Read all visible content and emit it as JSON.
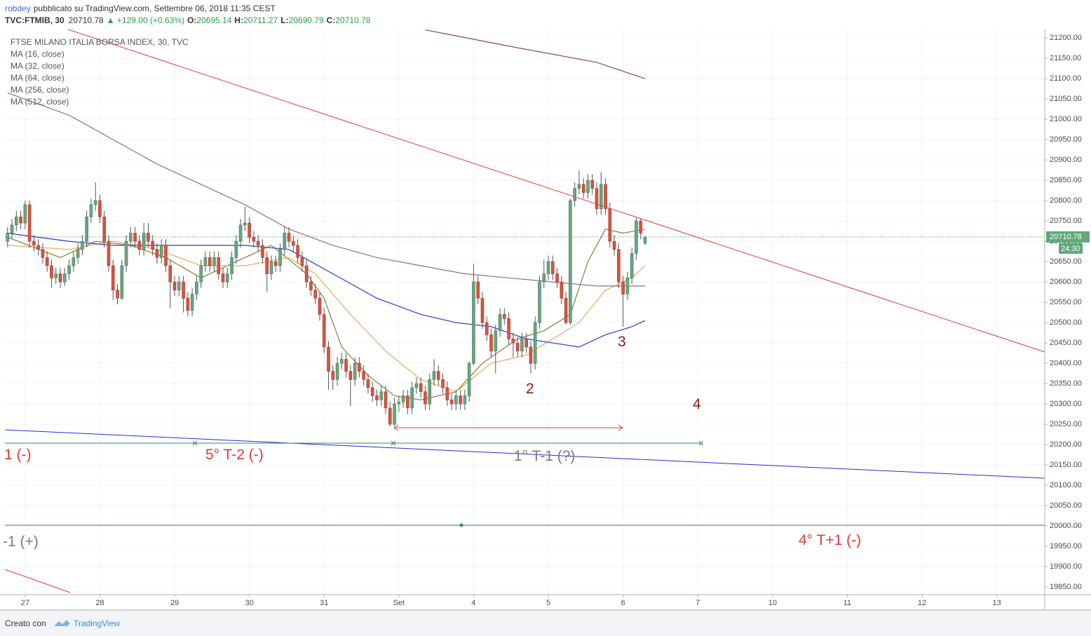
{
  "header": {
    "author": "robdey",
    "published": "pubblicato su TradingView.com, Settembre 06, 2018 11:35 CEST",
    "symbol": "TVC:FTMIB, 30",
    "last": "20710.78",
    "change": "▲ +129.00 (+0.63%)",
    "ohlc": [
      {
        "label": "O:",
        "value": "20695.14"
      },
      {
        "label": "H:",
        "value": "20711.27"
      },
      {
        "label": "L:",
        "value": "20690.79"
      },
      {
        "label": "C:",
        "value": "20710.78"
      }
    ]
  },
  "footer": {
    "made_with": "Creato con",
    "brand": "TradingView"
  },
  "chart_data": {
    "type": "candlestick",
    "title": "FTSE MILANO ITALIA BORSA INDEX, 30, TVC",
    "up_color": "#6ba583",
    "down_color": "#d75442",
    "grid": true,
    "xlim": [
      -4.6,
      231.9
    ],
    "ylim": [
      19831,
      21221
    ],
    "xticks": [
      {
        "value": 0,
        "label": "27"
      },
      {
        "value": 17,
        "label": "28"
      },
      {
        "value": 34,
        "label": "29"
      },
      {
        "value": 51,
        "label": "30"
      },
      {
        "value": 68,
        "label": "31"
      },
      {
        "value": 85,
        "label": "Set"
      },
      {
        "value": 102,
        "label": "4"
      },
      {
        "value": 119,
        "label": "5"
      },
      {
        "value": 136,
        "label": "6"
      },
      {
        "value": 153,
        "label": "7"
      },
      {
        "value": 170,
        "label": "10"
      },
      {
        "value": 187,
        "label": "11"
      },
      {
        "value": 204,
        "label": "12"
      },
      {
        "value": 221,
        "label": "13"
      }
    ],
    "yticks": [
      {
        "value": 19850,
        "label": "19850.00"
      },
      {
        "value": 19900,
        "label": "19900.00"
      },
      {
        "value": 19950,
        "label": "19950.00"
      },
      {
        "value": 20000,
        "label": "20000.00"
      },
      {
        "value": 20050,
        "label": "20050.00"
      },
      {
        "value": 20100,
        "label": "20100.00"
      },
      {
        "value": 20150,
        "label": "20150.00"
      },
      {
        "value": 20200,
        "label": "20200.00"
      },
      {
        "value": 20250,
        "label": "20250.00"
      },
      {
        "value": 20300,
        "label": "20300.00"
      },
      {
        "value": 20350,
        "label": "20350.00"
      },
      {
        "value": 20400,
        "label": "20400.00"
      },
      {
        "value": 20450,
        "label": "20450.00"
      },
      {
        "value": 20500,
        "label": "20500.00"
      },
      {
        "value": 20550,
        "label": "20550.00"
      },
      {
        "value": 20600,
        "label": "20600.00"
      },
      {
        "value": 20650,
        "label": "20650.00"
      },
      {
        "value": 20700,
        "label": "20700.00"
      },
      {
        "value": 20750,
        "label": "20750.00"
      },
      {
        "value": 20800,
        "label": "20800.00"
      },
      {
        "value": 20850,
        "label": "20850.00"
      },
      {
        "value": 20900,
        "label": "20900.00"
      },
      {
        "value": 20950,
        "label": "20950.00"
      },
      {
        "value": 21000,
        "label": "21000.00"
      },
      {
        "value": 21050,
        "label": "21050.00"
      },
      {
        "value": 21100,
        "label": "21100.00"
      },
      {
        "value": 21150,
        "label": "21150.00"
      },
      {
        "value": 21200,
        "label": "21200.00"
      }
    ],
    "last_price": 20710.78,
    "countdown": "24:30",
    "x": [
      -4,
      -3,
      -2,
      -1,
      0,
      1,
      2,
      3,
      4,
      5,
      6,
      7,
      8,
      9,
      10,
      11,
      12,
      13,
      14,
      15,
      16,
      17,
      18,
      19,
      20,
      21,
      22,
      23,
      24,
      25,
      26,
      27,
      28,
      29,
      30,
      31,
      32,
      33,
      34,
      35,
      36,
      37,
      38,
      39,
      40,
      41,
      42,
      43,
      44,
      45,
      46,
      47,
      48,
      49,
      50,
      51,
      52,
      53,
      54,
      55,
      56,
      57,
      58,
      59,
      60,
      61,
      62,
      63,
      64,
      65,
      66,
      67,
      68,
      69,
      70,
      71,
      72,
      73,
      74,
      75,
      76,
      77,
      78,
      79,
      80,
      81,
      82,
      83,
      84,
      85,
      86,
      87,
      88,
      89,
      90,
      91,
      92,
      93,
      94,
      95,
      96,
      97,
      98,
      99,
      100,
      101,
      102,
      103,
      104,
      105,
      106,
      107,
      108,
      109,
      110,
      111,
      112,
      113,
      114,
      115,
      116,
      117,
      118,
      119,
      120,
      121,
      122,
      123,
      124,
      125,
      126,
      127,
      128,
      129,
      130,
      131,
      132,
      133,
      134,
      135,
      136,
      137,
      138,
      139,
      140,
      141
    ],
    "candles": [
      [
        20700,
        20735,
        20685,
        20720
      ],
      [
        20720,
        20755,
        20705,
        20740
      ],
      [
        20740,
        20775,
        20725,
        20760
      ],
      [
        20760,
        20775,
        20730,
        20745
      ],
      [
        20745,
        20800,
        20730,
        20790
      ],
      [
        20790,
        20800,
        20685,
        20700
      ],
      [
        20700,
        20715,
        20675,
        20690
      ],
      [
        20690,
        20705,
        20665,
        20680
      ],
      [
        20680,
        20695,
        20645,
        20660
      ],
      [
        20660,
        20675,
        20625,
        20640
      ],
      [
        20640,
        20655,
        20585,
        20610
      ],
      [
        20610,
        20635,
        20595,
        20620
      ],
      [
        20620,
        20635,
        20585,
        20600
      ],
      [
        20600,
        20635,
        20590,
        20620
      ],
      [
        20620,
        20655,
        20605,
        20640
      ],
      [
        20640,
        20675,
        20625,
        20660
      ],
      [
        20660,
        20695,
        20645,
        20680
      ],
      [
        20680,
        20715,
        20665,
        20700
      ],
      [
        20700,
        20775,
        20685,
        20760
      ],
      [
        20760,
        20805,
        20745,
        20790
      ],
      [
        20790,
        20845,
        20775,
        20800
      ],
      [
        20800,
        20815,
        20745,
        20760
      ],
      [
        20760,
        20775,
        20685,
        20700
      ],
      [
        20700,
        20715,
        20625,
        20640
      ],
      [
        20640,
        20655,
        20555,
        20580
      ],
      [
        20580,
        20595,
        20545,
        20560
      ],
      [
        20560,
        20655,
        20555,
        20640
      ],
      [
        20640,
        20715,
        20625,
        20700
      ],
      [
        20700,
        20735,
        20685,
        20720
      ],
      [
        20720,
        20735,
        20685,
        20700
      ],
      [
        20700,
        20715,
        20665,
        20680
      ],
      [
        20680,
        20745,
        20665,
        20720
      ],
      [
        20720,
        20745,
        20685,
        20700
      ],
      [
        20700,
        20715,
        20665,
        20680
      ],
      [
        20680,
        20695,
        20645,
        20660
      ],
      [
        20660,
        20705,
        20645,
        20690
      ],
      [
        20690,
        20705,
        20625,
        20640
      ],
      [
        20640,
        20655,
        20535,
        20600
      ],
      [
        20600,
        20615,
        20565,
        20580
      ],
      [
        20580,
        20615,
        20565,
        20600
      ],
      [
        20600,
        20615,
        20525,
        20560
      ],
      [
        20560,
        20575,
        20515,
        20530
      ],
      [
        20530,
        20585,
        20515,
        20570
      ],
      [
        20570,
        20615,
        20555,
        20600
      ],
      [
        20600,
        20655,
        20585,
        20640
      ],
      [
        20640,
        20675,
        20625,
        20660
      ],
      [
        20660,
        20675,
        20625,
        20640
      ],
      [
        20640,
        20675,
        20625,
        20660
      ],
      [
        20660,
        20675,
        20605,
        20620
      ],
      [
        20620,
        20635,
        20585,
        20600
      ],
      [
        20600,
        20635,
        20585,
        20620
      ],
      [
        20620,
        20675,
        20605,
        20660
      ],
      [
        20660,
        20715,
        20645,
        20700
      ],
      [
        20700,
        20755,
        20685,
        20740
      ],
      [
        20740,
        20785,
        20725,
        20745
      ],
      [
        20745,
        20760,
        20695,
        20710
      ],
      [
        20710,
        20725,
        20685,
        20700
      ],
      [
        20700,
        20715,
        20675,
        20690
      ],
      [
        20690,
        20705,
        20645,
        20660
      ],
      [
        20660,
        20675,
        20575,
        20620
      ],
      [
        20620,
        20665,
        20605,
        20650
      ],
      [
        20650,
        20665,
        20625,
        20640
      ],
      [
        20640,
        20695,
        20625,
        20680
      ],
      [
        20680,
        20735,
        20665,
        20720
      ],
      [
        20720,
        20735,
        20685,
        20700
      ],
      [
        20700,
        20715,
        20675,
        20690
      ],
      [
        20690,
        20705,
        20645,
        20660
      ],
      [
        20660,
        20675,
        20625,
        20640
      ],
      [
        20640,
        20655,
        20585,
        20600
      ],
      [
        20600,
        20615,
        20565,
        20580
      ],
      [
        20580,
        20595,
        20545,
        20560
      ],
      [
        20560,
        20575,
        20505,
        20520
      ],
      [
        20520,
        20535,
        20425,
        20440
      ],
      [
        20440,
        20455,
        20335,
        20380
      ],
      [
        20380,
        20395,
        20335,
        20360
      ],
      [
        20360,
        20415,
        20345,
        20400
      ],
      [
        20400,
        20425,
        20385,
        20410
      ],
      [
        20410,
        20425,
        20365,
        20380
      ],
      [
        20380,
        20395,
        20295,
        20360
      ],
      [
        20360,
        20415,
        20345,
        20400
      ],
      [
        20400,
        20415,
        20365,
        20380
      ],
      [
        20380,
        20395,
        20345,
        20360
      ],
      [
        20360,
        20375,
        20325,
        20340
      ],
      [
        20340,
        20355,
        20305,
        20320
      ],
      [
        20320,
        20335,
        20295,
        20310
      ],
      [
        20310,
        20345,
        20295,
        20330
      ],
      [
        20330,
        20345,
        20275,
        20290
      ],
      [
        20290,
        20305,
        20245,
        20250
      ],
      [
        20250,
        20315,
        20245,
        20300
      ],
      [
        20300,
        20320,
        20280,
        20305
      ],
      [
        20305,
        20335,
        20290,
        20320
      ],
      [
        20320,
        20335,
        20275,
        20290
      ],
      [
        20290,
        20355,
        20275,
        20340
      ],
      [
        20340,
        20365,
        20325,
        20350
      ],
      [
        20350,
        20365,
        20315,
        20330
      ],
      [
        20330,
        20345,
        20285,
        20300
      ],
      [
        20300,
        20375,
        20285,
        20360
      ],
      [
        20360,
        20410,
        20345,
        20380
      ],
      [
        20380,
        20395,
        20345,
        20360
      ],
      [
        20360,
        20375,
        20325,
        20340
      ],
      [
        20340,
        20355,
        20295,
        20310
      ],
      [
        20310,
        20325,
        20285,
        20300
      ],
      [
        20300,
        20335,
        20285,
        20320
      ],
      [
        20320,
        20335,
        20285,
        20300
      ],
      [
        20300,
        20335,
        20285,
        20320
      ],
      [
        20320,
        20405,
        20305,
        20400
      ],
      [
        20400,
        20645,
        20395,
        20600
      ],
      [
        20600,
        20615,
        20545,
        20560
      ],
      [
        20560,
        20575,
        20485,
        20500
      ],
      [
        20500,
        20515,
        20455,
        20470
      ],
      [
        20470,
        20485,
        20415,
        20430
      ],
      [
        20430,
        20495,
        20375,
        20480
      ],
      [
        20480,
        20535,
        20465,
        20520
      ],
      [
        20520,
        20535,
        20495,
        20510
      ],
      [
        20510,
        20525,
        20445,
        20460
      ],
      [
        20460,
        20475,
        20415,
        20450
      ],
      [
        20450,
        20465,
        20415,
        20430
      ],
      [
        20430,
        20475,
        20415,
        20460
      ],
      [
        20460,
        20475,
        20425,
        20440
      ],
      [
        20440,
        20455,
        20375,
        20400
      ],
      [
        20400,
        20515,
        20385,
        20500
      ],
      [
        20500,
        20615,
        20485,
        20600
      ],
      [
        20600,
        20655,
        20585,
        20620
      ],
      [
        20620,
        20665,
        20605,
        20650
      ],
      [
        20650,
        20665,
        20605,
        20620
      ],
      [
        20620,
        20635,
        20585,
        20600
      ],
      [
        20600,
        20615,
        20545,
        20560
      ],
      [
        20560,
        20575,
        20495,
        20500
      ],
      [
        20500,
        20805,
        20495,
        20800
      ],
      [
        20800,
        20845,
        20785,
        20830
      ],
      [
        20830,
        20875,
        20815,
        20840
      ],
      [
        20840,
        20855,
        20805,
        20820
      ],
      [
        20820,
        20865,
        20805,
        20850
      ],
      [
        20850,
        20865,
        20815,
        20830
      ],
      [
        20830,
        20845,
        20765,
        20780
      ],
      [
        20780,
        20870,
        20765,
        20840
      ],
      [
        20840,
        20855,
        20765,
        20780
      ],
      [
        20780,
        20795,
        20685,
        20700
      ],
      [
        20700,
        20715,
        20665,
        20680
      ],
      [
        20680,
        20695,
        20585,
        20600
      ],
      [
        20600,
        20615,
        20490,
        20570
      ],
      [
        20570,
        20625,
        20555,
        20610
      ],
      [
        20610,
        20685,
        20595,
        20670
      ],
      [
        20670,
        20760,
        20655,
        20750
      ],
      [
        20750,
        20755,
        20705,
        20720
      ],
      [
        20695.14,
        20711.27,
        20690.79,
        20710.78
      ]
    ],
    "series": [
      {
        "name": "MA (16, close)",
        "color": "#8a7a3c",
        "x": [
          -4,
          8,
          16,
          24,
          32,
          40,
          48,
          56,
          64,
          68,
          72,
          78,
          84,
          90,
          98,
          104,
          112,
          118,
          124,
          128,
          132,
          136,
          141
        ],
        "values": [
          20710,
          20660,
          20700,
          20690,
          20660,
          20610,
          20650,
          20690,
          20620,
          20560,
          20440,
          20370,
          20320,
          20310,
          20330,
          20400,
          20460,
          20480,
          20520,
          20650,
          20730,
          20720,
          20730
        ]
      },
      {
        "name": "MA (32, close)",
        "color": "#f0a55a",
        "x": [
          -4,
          10,
          20,
          30,
          40,
          50,
          60,
          66,
          74,
          82,
          90,
          98,
          106,
          114,
          120,
          126,
          132,
          138,
          141
        ],
        "values": [
          20690,
          20680,
          20700,
          20680,
          20640,
          20640,
          20660,
          20620,
          20520,
          20430,
          20360,
          20330,
          20400,
          20420,
          20460,
          20500,
          20580,
          20610,
          20640
        ]
      },
      {
        "name": "MA (64, close)",
        "color": "#2b3bd1",
        "x": [
          -4,
          10,
          20,
          30,
          40,
          50,
          60,
          70,
          80,
          90,
          98,
          106,
          114,
          120,
          126,
          132,
          138,
          141
        ],
        "values": [
          20720,
          20700,
          20690,
          20690,
          20690,
          20690,
          20680,
          20620,
          20560,
          20520,
          20500,
          20490,
          20460,
          20450,
          20440,
          20470,
          20490,
          20505
        ]
      },
      {
        "name": "MA (256, close)",
        "color": "#9c6b7a",
        "x": [
          -4,
          10,
          20,
          30,
          40,
          50,
          60,
          70,
          80,
          90,
          100,
          110,
          120,
          130,
          141
        ],
        "values": [
          21065,
          21010,
          20950,
          20890,
          20840,
          20790,
          20730,
          20690,
          20660,
          20640,
          20620,
          20610,
          20600,
          20590,
          20590
        ]
      },
      {
        "name": "MA (512, close)",
        "color": "#8b4a3a",
        "x": [
          91,
          110,
          130,
          141
        ],
        "values": [
          21220,
          21180,
          21140,
          21100
        ]
      }
    ],
    "annotations": [
      "1 (-)",
      "5° T-2 (-)",
      "1° T-1 (?)",
      "-1 (+)",
      "4° T+1 (-)",
      "2",
      "3",
      "4"
    ]
  }
}
